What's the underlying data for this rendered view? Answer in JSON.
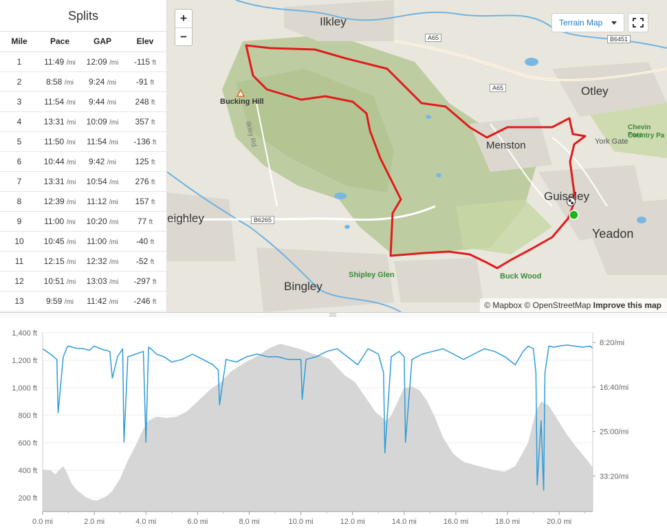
{
  "splits": {
    "title": "Splits",
    "columns": [
      "Mile",
      "Pace",
      "GAP",
      "Elev"
    ],
    "rows": [
      {
        "mile": "1",
        "pace": "11:49",
        "gap": "12:09",
        "elev": "-115"
      },
      {
        "mile": "2",
        "pace": "8:58",
        "gap": "9:24",
        "elev": "-91"
      },
      {
        "mile": "3",
        "pace": "11:54",
        "gap": "9:44",
        "elev": "248"
      },
      {
        "mile": "4",
        "pace": "13:31",
        "gap": "10:09",
        "elev": "357"
      },
      {
        "mile": "5",
        "pace": "11:50",
        "gap": "11:54",
        "elev": "-136"
      },
      {
        "mile": "6",
        "pace": "10:44",
        "gap": "9:42",
        "elev": "125"
      },
      {
        "mile": "7",
        "pace": "13:31",
        "gap": "10:54",
        "elev": "276"
      },
      {
        "mile": "8",
        "pace": "12:39",
        "gap": "11:12",
        "elev": "157"
      },
      {
        "mile": "9",
        "pace": "11:00",
        "gap": "10:20",
        "elev": "77"
      },
      {
        "mile": "10",
        "pace": "10:45",
        "gap": "11:00",
        "elev": "-40"
      },
      {
        "mile": "11",
        "pace": "12:15",
        "gap": "12:32",
        "elev": "-52"
      },
      {
        "mile": "12",
        "pace": "10:51",
        "gap": "13:03",
        "elev": "-297"
      },
      {
        "mile": "13",
        "pace": "9:59",
        "gap": "11:42",
        "elev": "-246"
      }
    ],
    "pace_unit": "/mi",
    "elev_unit": "ft"
  },
  "map": {
    "zoom_in": "+",
    "zoom_out": "−",
    "map_type": "Terrain Map",
    "attribution_prefix": "© Mapbox © OpenStreetMap",
    "attribution_link": "Improve this map",
    "places": [
      "Ilkley",
      "Otley",
      "Menston",
      "Guiseley",
      "Yeadon",
      "Bingley",
      "eighley",
      "Bucking Hill",
      "Ilkley Rd",
      "York Gate",
      "Chevin Fore",
      "Country Pa",
      "Shipley Glen",
      "Buck Wood"
    ],
    "roads": [
      "A65",
      "A65",
      "B6451",
      "B6265"
    ],
    "colors": {
      "route": "#e01b1b",
      "start": "#1fb31f",
      "moor": "#b9c99a",
      "land": "#e9e7de",
      "water": "#78b8e0"
    },
    "icons": [
      "zoom-in-icon",
      "zoom-out-icon",
      "caret-down-icon",
      "fullscreen-icon",
      "finish-flag-icon",
      "start-marker-icon",
      "summit-icon"
    ]
  },
  "chart_data": {
    "type": "area",
    "x_unit": "mi",
    "x_ticks": [
      "0.0 mi",
      "2.0 mi",
      "4.0 mi",
      "6.0 mi",
      "8.0 mi",
      "10.0 mi",
      "12.0 mi",
      "14.0 mi",
      "16.0 mi",
      "18.0 mi",
      "20.0 mi"
    ],
    "y_left_ticks": [
      "1,400 ft",
      "1,200 ft",
      "1,000 ft",
      "800 ft",
      "600 ft",
      "400 ft",
      "200 ft"
    ],
    "y_right_ticks": [
      "8:20/mi",
      "16:40/mi",
      "25:00/mi",
      "33:20/mi"
    ],
    "xlim": [
      0,
      21.3
    ],
    "ylim_elev": [
      100,
      1400
    ],
    "grid": true,
    "colors": {
      "elevation": "#d6d6d6",
      "pace": "#2d9cd8"
    },
    "series": [
      {
        "kind": "elevation_ft",
        "x": [
          0.0,
          0.3,
          0.5,
          0.6,
          0.8,
          0.95,
          1.1,
          1.3,
          1.5,
          1.7,
          1.9,
          2.1,
          2.3,
          2.5,
          2.7,
          3.0,
          3.3,
          3.6,
          3.9,
          4.1,
          4.4,
          4.8,
          5.2,
          5.6,
          6.0,
          6.5,
          6.9,
          7.3,
          7.8,
          8.3,
          8.8,
          9.2,
          9.6,
          10.0,
          10.4,
          10.8,
          11.1,
          11.4,
          11.7,
          12.1,
          12.5,
          12.9,
          13.3,
          13.5,
          13.7,
          14.0,
          14.3,
          14.6,
          14.9,
          15.2,
          15.5,
          15.9,
          16.3,
          16.7,
          17.1,
          17.5,
          17.9,
          18.3,
          18.8,
          19.1,
          19.3,
          19.6,
          19.9,
          20.3,
          20.7,
          21.1,
          21.3
        ],
        "y": [
          405,
          400,
          370,
          395,
          430,
          380,
          310,
          260,
          230,
          200,
          185,
          180,
          195,
          215,
          250,
          340,
          470,
          580,
          700,
          760,
          790,
          780,
          790,
          830,
          900,
          990,
          1040,
          1120,
          1180,
          1230,
          1290,
          1320,
          1300,
          1280,
          1250,
          1230,
          1210,
          1150,
          1090,
          1040,
          930,
          820,
          760,
          800,
          880,
          1000,
          1010,
          980,
          900,
          780,
          640,
          520,
          460,
          440,
          420,
          400,
          390,
          430,
          600,
          830,
          900,
          870,
          780,
          660,
          560,
          470,
          420
        ]
      },
      {
        "kind": "pace_min_per_mi",
        "x": [
          0.0,
          0.3,
          0.55,
          0.6,
          0.8,
          0.95,
          1.0,
          1.3,
          1.6,
          1.8,
          2.0,
          2.3,
          2.6,
          2.7,
          2.9,
          3.1,
          3.15,
          3.3,
          3.6,
          3.9,
          4.0,
          4.1,
          4.2,
          4.4,
          4.7,
          5.0,
          5.4,
          5.8,
          6.2,
          6.6,
          6.8,
          6.85,
          7.1,
          7.5,
          7.9,
          8.3,
          8.7,
          9.1,
          9.5,
          10.0,
          10.05,
          10.2,
          10.6,
          11.0,
          11.4,
          11.8,
          12.2,
          12.6,
          13.0,
          13.2,
          13.25,
          13.5,
          13.8,
          14.0,
          14.05,
          14.3,
          14.7,
          15.1,
          15.5,
          15.9,
          16.3,
          16.7,
          17.1,
          17.5,
          17.9,
          18.3,
          18.6,
          18.8,
          19.0,
          19.1,
          19.15,
          19.3,
          19.4,
          19.45,
          19.6,
          19.8,
          20.0,
          20.3,
          20.6,
          20.9,
          21.2,
          21.3
        ],
        "y": [
          9.5,
          10.5,
          11.5,
          21.5,
          11.0,
          9.2,
          9.0,
          9.4,
          9.5,
          9.8,
          9.0,
          9.6,
          10.0,
          15.0,
          11.0,
          9.5,
          27.0,
          11.0,
          10.5,
          10.0,
          27.0,
          9.2,
          9.5,
          10.5,
          11.0,
          12.0,
          11.5,
          10.5,
          11.5,
          12.5,
          13.5,
          20.0,
          11.5,
          12.0,
          11.0,
          10.5,
          11.0,
          11.0,
          11.5,
          11.5,
          19.0,
          11.5,
          11.0,
          10.0,
          9.5,
          11.0,
          12.5,
          9.5,
          10.5,
          14.0,
          29.0,
          11.0,
          10.0,
          11.0,
          27.0,
          11.5,
          10.5,
          10.0,
          9.5,
          10.5,
          11.5,
          10.5,
          9.5,
          10.0,
          11.0,
          12.5,
          10.0,
          9.0,
          9.5,
          14.0,
          35.0,
          23.0,
          36.0,
          14.0,
          9.0,
          9.2,
          9.0,
          8.8,
          9.0,
          9.2,
          9.0,
          9.4
        ]
      }
    ]
  }
}
